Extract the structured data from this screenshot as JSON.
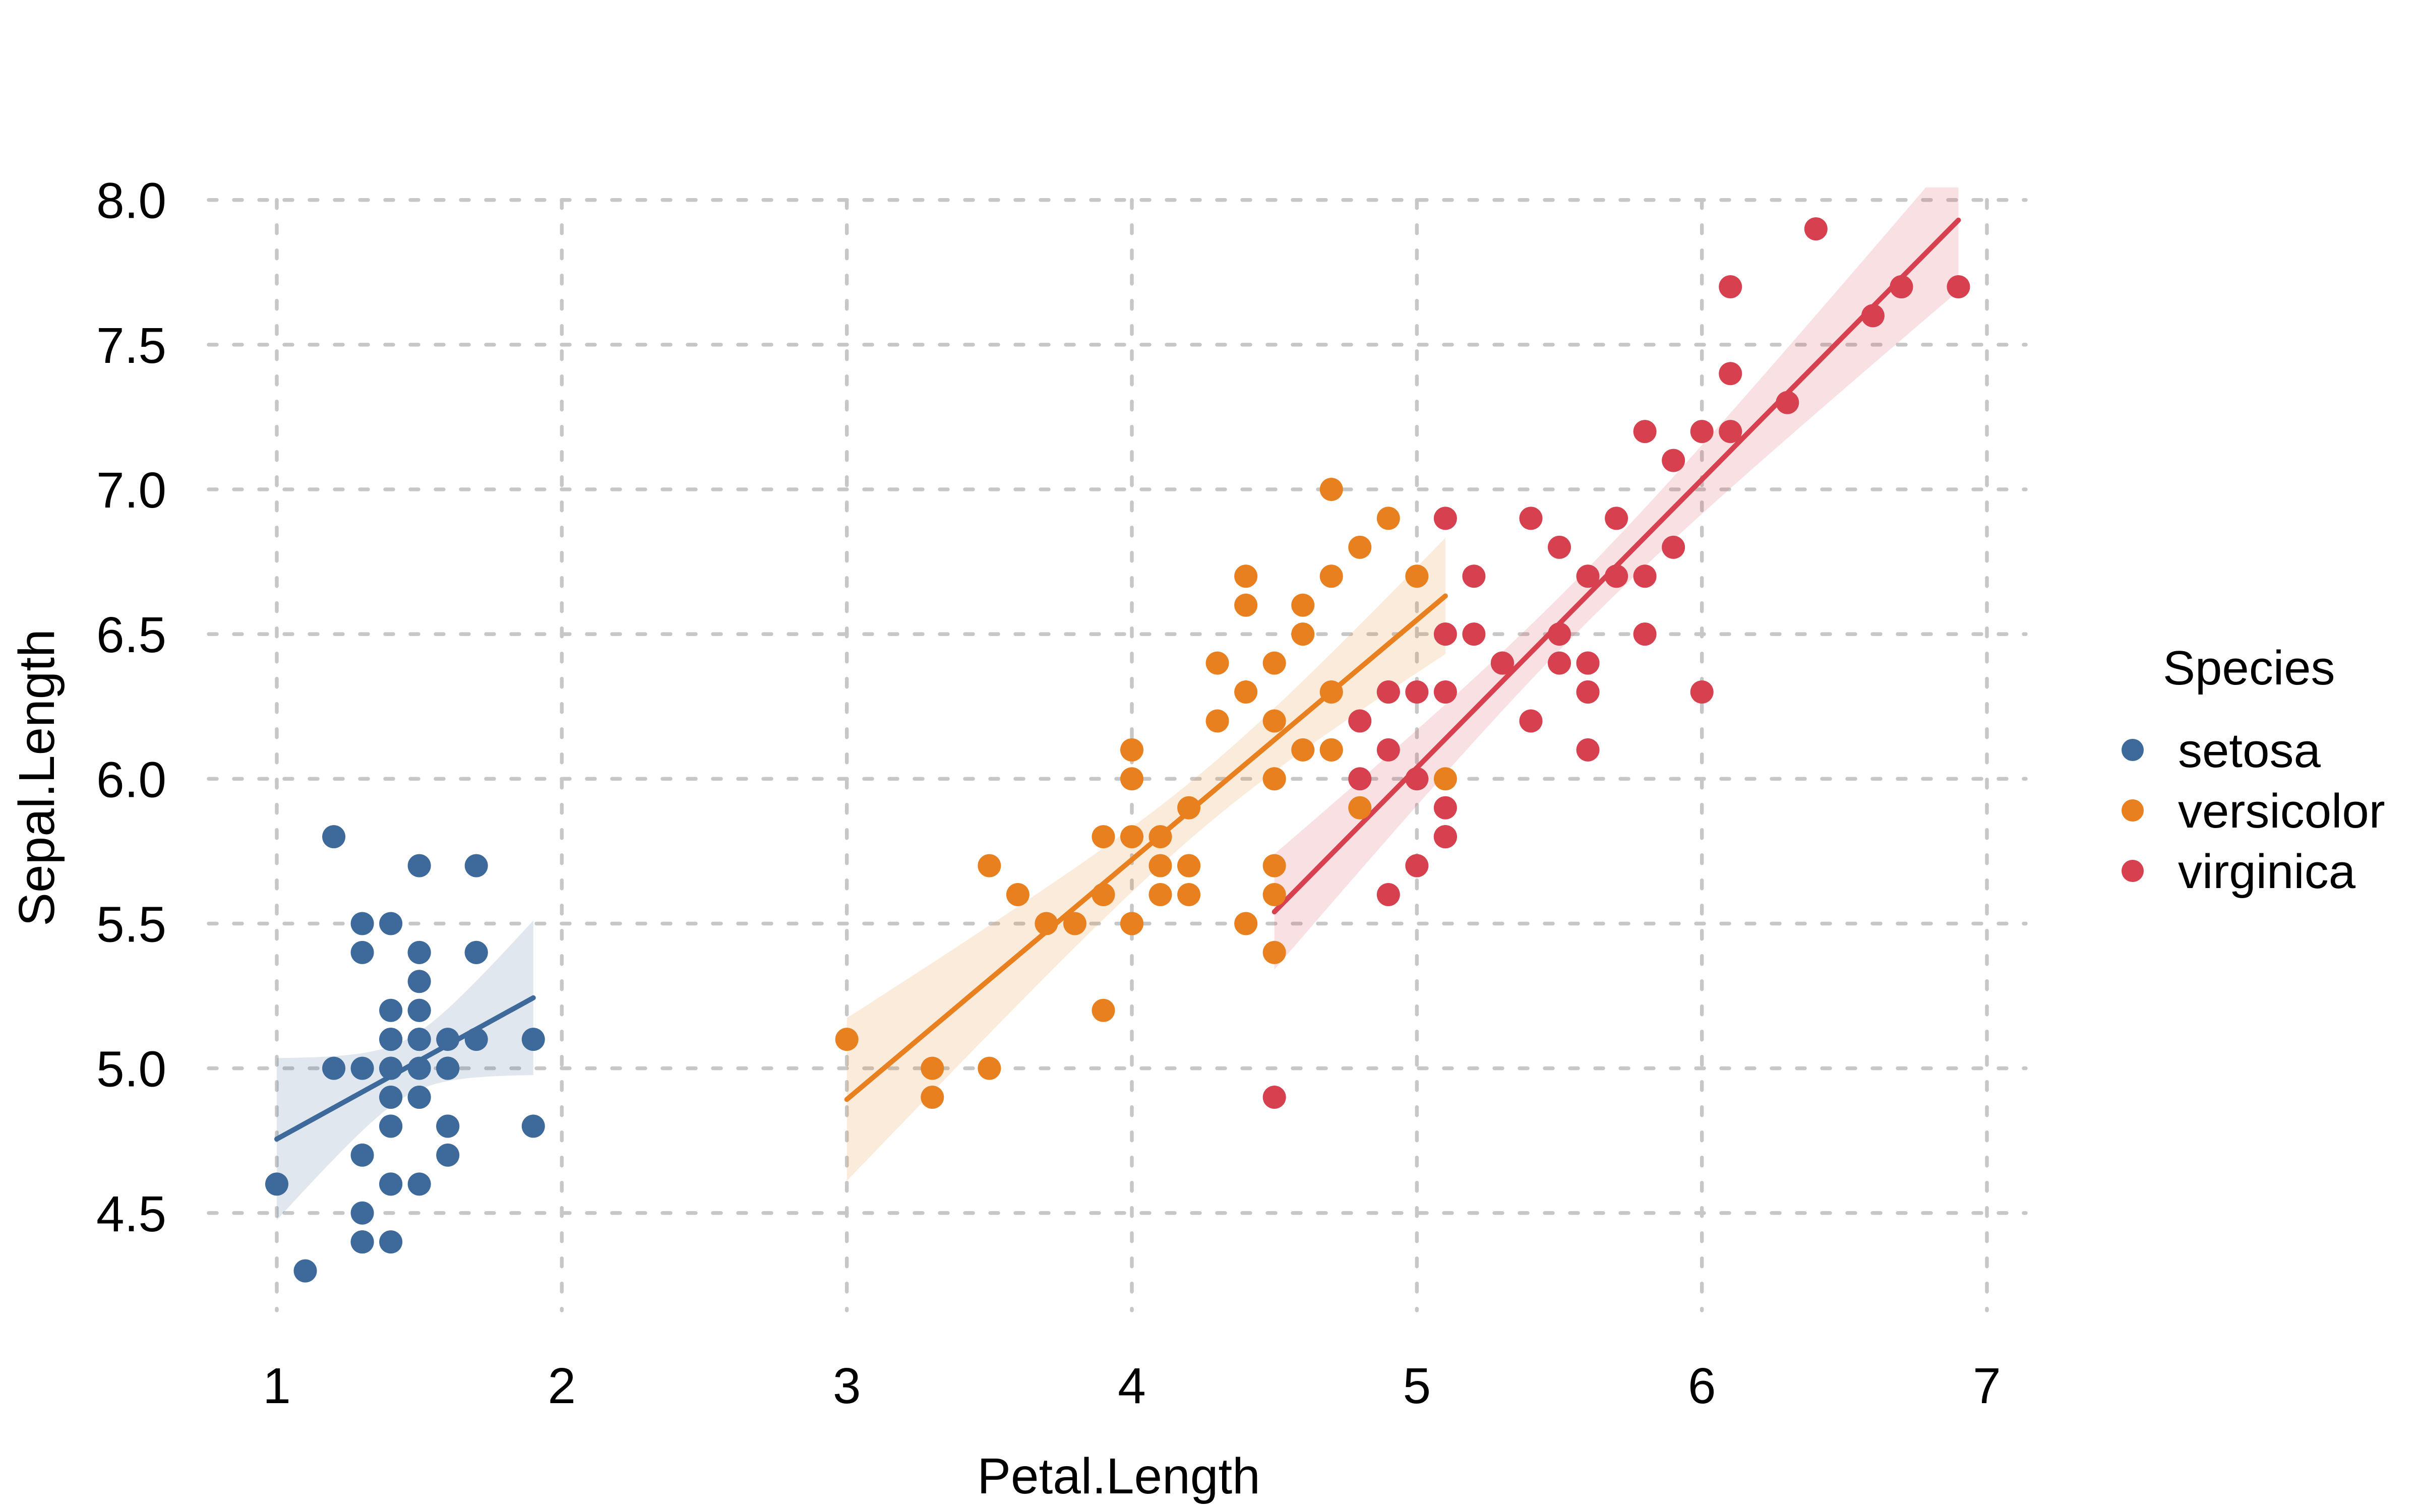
{
  "figure": {
    "x_axis": {
      "title": "Petal.Length",
      "tick_labels": [
        "1",
        "2",
        "3",
        "4",
        "5",
        "6",
        "7"
      ],
      "tick_values": [
        1,
        2,
        3,
        4,
        5,
        6,
        7
      ]
    },
    "y_axis": {
      "title": "Sepal.Length",
      "tick_labels": [
        "4.5",
        "5.0",
        "5.5",
        "6.0",
        "6.5",
        "7.0",
        "7.5",
        "8.0"
      ],
      "tick_values": [
        4.5,
        5.0,
        5.5,
        6.0,
        6.5,
        7.0,
        7.5,
        8.0
      ]
    },
    "legend": {
      "title": "Species",
      "items": [
        {
          "label": "setosa",
          "color": "#3D6A9B"
        },
        {
          "label": "versicolor",
          "color": "#E9801F"
        },
        {
          "label": "virginica",
          "color": "#D6404F"
        }
      ]
    },
    "colors": {
      "grid": "#C7C7C7",
      "background": "#FFFFFF",
      "text": "#000000"
    }
  },
  "chart_data": {
    "type": "scatter",
    "title": "",
    "xlabel": "Petal.Length",
    "ylabel": "Sepal.Length",
    "xlim": [
      0.77,
      7.14
    ],
    "ylim": [
      4.16,
      8.04
    ],
    "grid": "dashed",
    "legend_position": "right",
    "regression": {
      "kind": "linear",
      "ci_level": 0.95,
      "band_opacity": 0.16
    },
    "series": [
      {
        "name": "setosa",
        "color": "#3D6A9B",
        "points": [
          [
            1.4,
            5.1
          ],
          [
            1.4,
            4.9
          ],
          [
            1.3,
            4.7
          ],
          [
            1.5,
            4.6
          ],
          [
            1.4,
            5.0
          ],
          [
            1.7,
            5.4
          ],
          [
            1.4,
            4.6
          ],
          [
            1.5,
            5.0
          ],
          [
            1.4,
            4.4
          ],
          [
            1.5,
            4.9
          ],
          [
            1.5,
            5.4
          ],
          [
            1.6,
            4.8
          ],
          [
            1.4,
            4.8
          ],
          [
            1.1,
            4.3
          ],
          [
            1.2,
            5.8
          ],
          [
            1.5,
            5.7
          ],
          [
            1.3,
            5.4
          ],
          [
            1.4,
            5.1
          ],
          [
            1.7,
            5.7
          ],
          [
            1.5,
            5.1
          ],
          [
            1.7,
            5.4
          ],
          [
            1.5,
            5.1
          ],
          [
            1.0,
            4.6
          ],
          [
            1.7,
            5.1
          ],
          [
            1.9,
            4.8
          ],
          [
            1.6,
            5.0
          ],
          [
            1.6,
            5.0
          ],
          [
            1.5,
            5.2
          ],
          [
            1.4,
            5.2
          ],
          [
            1.6,
            4.7
          ],
          [
            1.6,
            4.8
          ],
          [
            1.5,
            5.4
          ],
          [
            1.5,
            5.2
          ],
          [
            1.4,
            5.5
          ],
          [
            1.5,
            4.9
          ],
          [
            1.2,
            5.0
          ],
          [
            1.3,
            5.5
          ],
          [
            1.4,
            4.9
          ],
          [
            1.3,
            4.4
          ],
          [
            1.5,
            5.1
          ],
          [
            1.3,
            5.0
          ],
          [
            1.3,
            4.5
          ],
          [
            1.3,
            4.4
          ],
          [
            1.6,
            5.0
          ],
          [
            1.9,
            5.1
          ],
          [
            1.4,
            4.8
          ],
          [
            1.6,
            5.1
          ],
          [
            1.4,
            4.6
          ],
          [
            1.5,
            5.3
          ],
          [
            1.4,
            5.0
          ]
        ]
      },
      {
        "name": "versicolor",
        "color": "#E9801F",
        "points": [
          [
            4.7,
            7.0
          ],
          [
            4.5,
            6.4
          ],
          [
            4.9,
            6.9
          ],
          [
            4.0,
            5.5
          ],
          [
            4.6,
            6.5
          ],
          [
            4.5,
            5.7
          ],
          [
            4.7,
            6.3
          ],
          [
            3.3,
            4.9
          ],
          [
            4.6,
            6.6
          ],
          [
            3.9,
            5.2
          ],
          [
            3.5,
            5.0
          ],
          [
            4.2,
            5.9
          ],
          [
            4.0,
            6.0
          ],
          [
            4.7,
            6.1
          ],
          [
            3.6,
            5.6
          ],
          [
            4.4,
            6.7
          ],
          [
            4.5,
            5.6
          ],
          [
            4.1,
            5.8
          ],
          [
            4.5,
            6.2
          ],
          [
            3.9,
            5.6
          ],
          [
            4.8,
            5.9
          ],
          [
            4.0,
            6.1
          ],
          [
            4.9,
            6.3
          ],
          [
            4.7,
            6.1
          ],
          [
            4.3,
            6.4
          ],
          [
            4.4,
            6.6
          ],
          [
            4.8,
            6.8
          ],
          [
            5.0,
            6.7
          ],
          [
            4.5,
            6.0
          ],
          [
            3.5,
            5.7
          ],
          [
            3.8,
            5.5
          ],
          [
            3.7,
            5.5
          ],
          [
            3.9,
            5.8
          ],
          [
            5.1,
            6.0
          ],
          [
            4.5,
            5.4
          ],
          [
            4.5,
            6.0
          ],
          [
            4.7,
            6.7
          ],
          [
            4.4,
            6.3
          ],
          [
            4.1,
            5.6
          ],
          [
            4.0,
            5.5
          ],
          [
            4.4,
            5.5
          ],
          [
            4.6,
            6.1
          ],
          [
            4.0,
            5.8
          ],
          [
            3.3,
            5.0
          ],
          [
            4.2,
            5.6
          ],
          [
            4.2,
            5.7
          ],
          [
            4.2,
            5.7
          ],
          [
            4.3,
            6.2
          ],
          [
            3.0,
            5.1
          ],
          [
            4.1,
            5.7
          ]
        ]
      },
      {
        "name": "virginica",
        "color": "#D6404F",
        "points": [
          [
            6.0,
            6.3
          ],
          [
            5.1,
            5.8
          ],
          [
            5.9,
            7.1
          ],
          [
            5.6,
            6.3
          ],
          [
            5.8,
            6.5
          ],
          [
            6.6,
            7.6
          ],
          [
            4.5,
            4.9
          ],
          [
            6.3,
            7.3
          ],
          [
            5.8,
            6.7
          ],
          [
            6.1,
            7.2
          ],
          [
            5.1,
            6.5
          ],
          [
            5.3,
            6.4
          ],
          [
            5.5,
            6.8
          ],
          [
            5.0,
            5.7
          ],
          [
            5.1,
            5.8
          ],
          [
            5.3,
            6.4
          ],
          [
            5.5,
            6.5
          ],
          [
            6.7,
            7.7
          ],
          [
            6.9,
            7.7
          ],
          [
            5.0,
            6.0
          ],
          [
            5.7,
            6.9
          ],
          [
            4.9,
            5.6
          ],
          [
            6.7,
            7.7
          ],
          [
            4.9,
            6.3
          ],
          [
            5.7,
            6.7
          ],
          [
            6.0,
            7.2
          ],
          [
            4.8,
            6.2
          ],
          [
            4.9,
            6.1
          ],
          [
            5.6,
            6.4
          ],
          [
            5.8,
            7.2
          ],
          [
            6.1,
            7.4
          ],
          [
            6.4,
            7.9
          ],
          [
            5.6,
            6.4
          ],
          [
            5.1,
            6.3
          ],
          [
            5.6,
            6.1
          ],
          [
            6.1,
            7.7
          ],
          [
            5.6,
            6.3
          ],
          [
            5.5,
            6.4
          ],
          [
            4.8,
            6.0
          ],
          [
            5.4,
            6.9
          ],
          [
            5.6,
            6.7
          ],
          [
            5.1,
            6.9
          ],
          [
            5.1,
            5.8
          ],
          [
            5.9,
            6.8
          ],
          [
            5.7,
            6.7
          ],
          [
            5.2,
            6.7
          ],
          [
            5.0,
            6.3
          ],
          [
            5.2,
            6.5
          ],
          [
            5.4,
            6.2
          ],
          [
            5.1,
            5.9
          ]
        ]
      }
    ]
  }
}
